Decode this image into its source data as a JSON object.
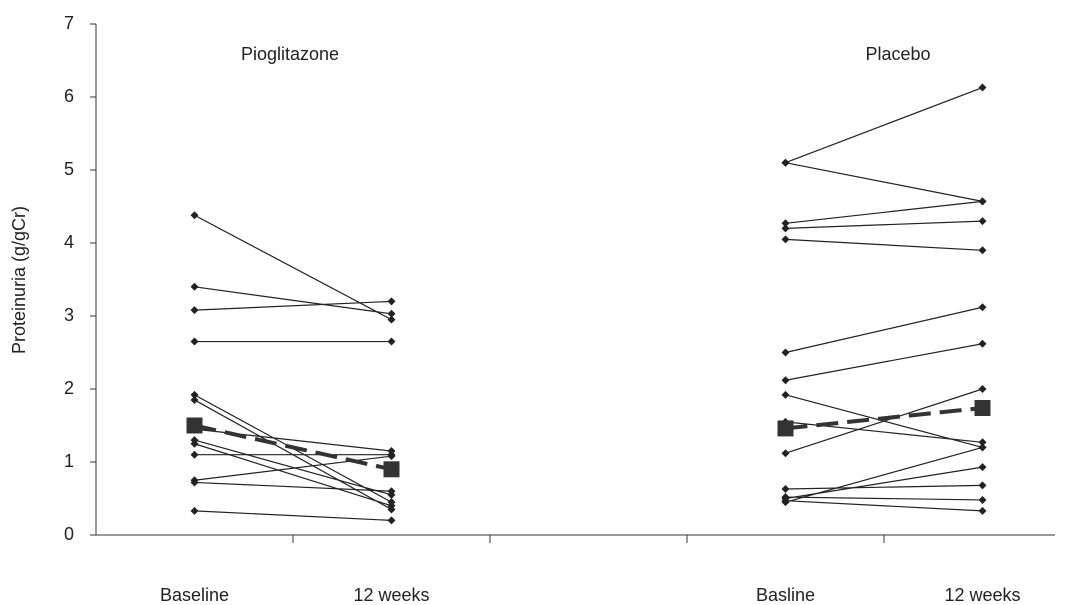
{
  "chart_data": {
    "type": "line",
    "y_label": "Proteinuria (g/gCr)",
    "group_labels": [
      "Pioglitazone",
      "Placebo"
    ],
    "categories": [
      "Baseline",
      "12 weeks",
      null,
      "Basline",
      "12 weeks"
    ],
    "ylim": [
      0,
      7
    ],
    "yticks": [
      0,
      1,
      2,
      3,
      4,
      5,
      6,
      7
    ],
    "series": [
      {
        "color": "#222222",
        "values": [
          4.38,
          2.95,
          null,
          null,
          null
        ]
      },
      {
        "color": "#222222",
        "values": [
          3.4,
          3.03,
          null,
          null,
          null
        ]
      },
      {
        "color": "#222222",
        "values": [
          3.08,
          3.2,
          null,
          null,
          null
        ]
      },
      {
        "color": "#222222",
        "values": [
          2.65,
          2.65,
          null,
          null,
          null
        ]
      },
      {
        "color": "#222222",
        "values": [
          1.92,
          0.45,
          null,
          null,
          null
        ]
      },
      {
        "color": "#222222",
        "values": [
          1.85,
          0.35,
          null,
          null,
          null
        ]
      },
      {
        "color": "#222222",
        "values": [
          1.45,
          1.15,
          null,
          null,
          null
        ]
      },
      {
        "color": "#222222",
        "values": [
          1.3,
          0.55,
          null,
          null,
          null
        ]
      },
      {
        "color": "#222222",
        "values": [
          1.25,
          0.4,
          null,
          null,
          null
        ]
      },
      {
        "color": "#222222",
        "values": [
          1.1,
          1.1,
          null,
          null,
          null
        ]
      },
      {
        "color": "#222222",
        "values": [
          0.75,
          1.08,
          null,
          null,
          null
        ]
      },
      {
        "color": "#222222",
        "values": [
          0.72,
          0.6,
          null,
          null,
          null
        ]
      },
      {
        "color": "#222222",
        "values": [
          0.33,
          0.2,
          null,
          null,
          null
        ]
      },
      {
        "color": "#222222",
        "values": [
          null,
          null,
          null,
          5.1,
          6.13
        ]
      },
      {
        "color": "#222222",
        "values": [
          null,
          null,
          null,
          5.1,
          4.57
        ]
      },
      {
        "color": "#222222",
        "values": [
          null,
          null,
          null,
          4.27,
          4.57
        ]
      },
      {
        "color": "#222222",
        "values": [
          null,
          null,
          null,
          4.2,
          4.3
        ]
      },
      {
        "color": "#222222",
        "values": [
          null,
          null,
          null,
          4.05,
          3.9
        ]
      },
      {
        "color": "#222222",
        "values": [
          null,
          null,
          null,
          2.5,
          3.12
        ]
      },
      {
        "color": "#222222",
        "values": [
          null,
          null,
          null,
          2.12,
          2.62
        ]
      },
      {
        "color": "#222222",
        "values": [
          null,
          null,
          null,
          1.92,
          1.2
        ]
      },
      {
        "color": "#222222",
        "values": [
          null,
          null,
          null,
          1.55,
          1.27
        ]
      },
      {
        "color": "#222222",
        "values": [
          null,
          null,
          null,
          1.12,
          2.0
        ]
      },
      {
        "color": "#222222",
        "values": [
          null,
          null,
          null,
          0.63,
          0.68
        ]
      },
      {
        "color": "#222222",
        "values": [
          null,
          null,
          null,
          0.52,
          0.48
        ]
      },
      {
        "color": "#222222",
        "values": [
          null,
          null,
          null,
          0.5,
          0.93
        ]
      },
      {
        "color": "#222222",
        "values": [
          null,
          null,
          null,
          0.45,
          1.2
        ]
      },
      {
        "color": "#222222",
        "values": [
          null,
          null,
          null,
          0.47,
          0.33
        ]
      },
      {
        "color": "#333333",
        "style": "dashed",
        "marker": "square",
        "values": [
          1.5,
          0.9,
          null,
          null,
          null
        ]
      },
      {
        "color": "#333333",
        "style": "dashed",
        "marker": "square",
        "values": [
          null,
          null,
          null,
          1.46,
          1.74
        ]
      }
    ]
  }
}
